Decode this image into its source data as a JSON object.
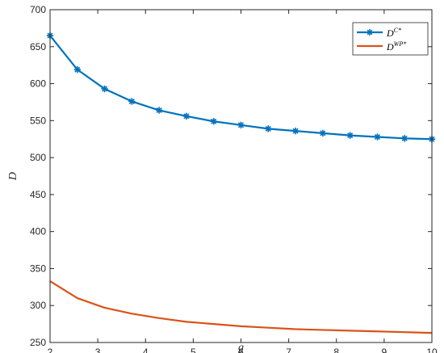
{
  "chart_data": {
    "type": "line",
    "xlabel": "g",
    "ylabel": "D",
    "xlim": [
      2,
      10
    ],
    "ylim": [
      250,
      700
    ],
    "xticks": [
      2,
      3,
      4,
      5,
      6,
      7,
      8,
      9,
      10
    ],
    "yticks": [
      250,
      300,
      350,
      400,
      450,
      500,
      550,
      600,
      650,
      700
    ],
    "grid": false,
    "legend_position": "top-right",
    "series": [
      {
        "name_base": "D",
        "name_sup": "C*",
        "color": "#0072BD",
        "marker": "asterisk",
        "x": [
          2.0,
          2.5714,
          3.1429,
          3.7143,
          4.2857,
          4.8571,
          5.4286,
          6.0,
          6.5714,
          7.1429,
          7.7143,
          8.2857,
          8.8571,
          9.4286,
          10.0
        ],
        "y": [
          665,
          619,
          593,
          576,
          564,
          556,
          549,
          544,
          539,
          536,
          533,
          530,
          528,
          526,
          525
        ]
      },
      {
        "name_base": "D",
        "name_sup": "WP*",
        "color": "#D95319",
        "marker": "none",
        "x": [
          2.0,
          2.5714,
          3.1429,
          3.7143,
          4.2857,
          4.8571,
          5.4286,
          6.0,
          6.5714,
          7.1429,
          7.7143,
          8.2857,
          8.8571,
          9.4286,
          10.0
        ],
        "y": [
          333,
          310,
          297,
          289,
          283,
          278,
          275,
          272,
          270,
          268,
          267,
          266,
          265,
          264,
          263
        ]
      }
    ]
  }
}
